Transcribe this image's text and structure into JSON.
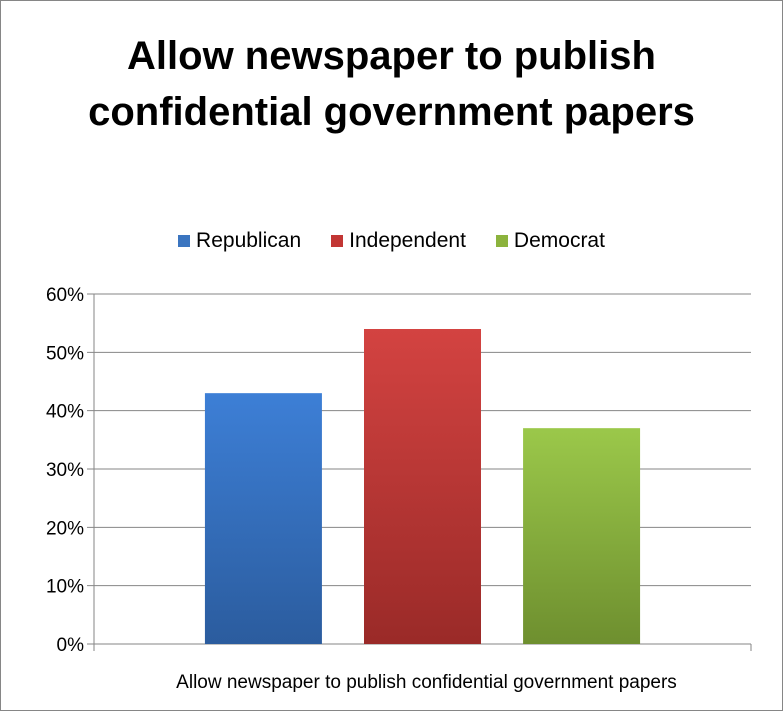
{
  "chart_data": {
    "type": "bar",
    "title": "Allow newspaper to publish confidential government papers",
    "categories": [
      "Allow newspaper to publish confidential government papers"
    ],
    "series": [
      {
        "name": "Republican",
        "values": [
          43
        ],
        "color": "#3b75c0"
      },
      {
        "name": "Independent",
        "values": [
          54
        ],
        "color": "#c23634"
      },
      {
        "name": "Democrat",
        "values": [
          37
        ],
        "color": "#8cb33d"
      }
    ],
    "ylim": [
      0,
      60
    ],
    "yticks": [
      "0%",
      "10%",
      "20%",
      "30%",
      "40%",
      "50%",
      "60%"
    ],
    "grid": true,
    "legend": "top"
  }
}
